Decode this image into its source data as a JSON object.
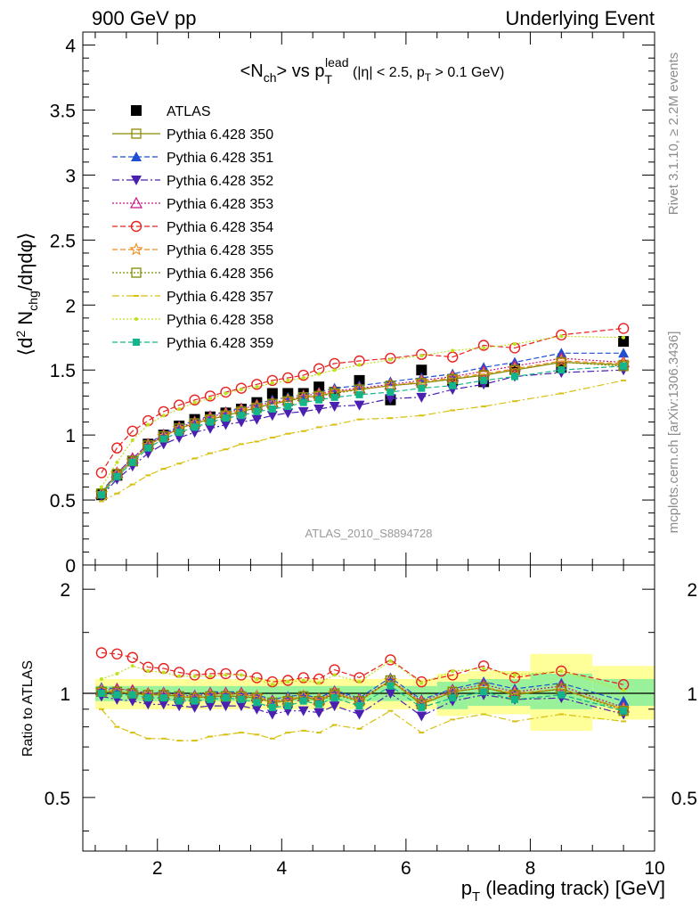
{
  "header": {
    "left": "900 GeV pp",
    "right": "Underlying Event",
    "side_top": "Rivet 3.1.10, ≥ 2.2M events",
    "side_bottom": "mcplots.cern.ch [arXiv:1306.3436]",
    "watermark": "ATLAS_2010_S8894728"
  },
  "chart_data": [
    {
      "type": "scatter",
      "title": "<N_ch> vs p_T^lead (|η| < 2.5, p_T > 0.1 GeV)",
      "xlabel": "p_T (leading track) [GeV]",
      "ylabel": "⟨d² N_chg/dηdφ⟩",
      "xlim": [
        0.8,
        10.0
      ],
      "ylim": [
        0,
        4.1
      ],
      "x_ticks": [
        "2",
        "4",
        "6",
        "8",
        "10"
      ],
      "y_ticks": [
        "0",
        "0.5",
        "1",
        "1.5",
        "2",
        "2.5",
        "3",
        "3.5",
        "4"
      ],
      "legend_position": "top-left",
      "x": [
        1.1,
        1.35,
        1.6,
        1.85,
        2.1,
        2.35,
        2.6,
        2.85,
        3.1,
        3.35,
        3.6,
        3.85,
        4.1,
        4.35,
        4.6,
        4.85,
        5.25,
        5.75,
        6.25,
        6.75,
        7.25,
        7.75,
        8.5,
        9.5
      ],
      "series": [
        {
          "name": "ATLAS",
          "color": "#000000",
          "marker": "filled-square",
          "line": "none",
          "values": [
            0.54,
            0.69,
            0.8,
            0.93,
            1.0,
            1.07,
            1.12,
            1.14,
            1.17,
            1.2,
            1.25,
            1.32,
            1.32,
            1.32,
            1.37,
            1.33,
            1.42,
            1.27,
            1.5,
            1.42,
            1.41,
            1.51,
            1.52,
            1.72
          ]
        },
        {
          "name": "Pythia 6.428 350",
          "color": "#8B8B00",
          "marker": "open-square",
          "line": "solid",
          "values": [
            0.55,
            0.7,
            0.8,
            0.92,
            0.99,
            1.05,
            1.09,
            1.12,
            1.15,
            1.18,
            1.21,
            1.24,
            1.26,
            1.29,
            1.3,
            1.33,
            1.35,
            1.38,
            1.4,
            1.43,
            1.46,
            1.5,
            1.56,
            1.54
          ]
        },
        {
          "name": "Pythia 6.428 351",
          "color": "#1f4fd1",
          "marker": "filled-triangle-up",
          "line": "dashed",
          "values": [
            0.56,
            0.71,
            0.82,
            0.93,
            1.01,
            1.07,
            1.11,
            1.15,
            1.18,
            1.21,
            1.24,
            1.27,
            1.29,
            1.31,
            1.33,
            1.36,
            1.38,
            1.41,
            1.44,
            1.47,
            1.52,
            1.56,
            1.63,
            1.63
          ]
        },
        {
          "name": "Pythia 6.428 352",
          "color": "#4b1fb0",
          "marker": "filled-triangle-down",
          "line": "dashdot",
          "values": [
            0.53,
            0.66,
            0.76,
            0.86,
            0.93,
            0.98,
            1.02,
            1.05,
            1.08,
            1.1,
            1.12,
            1.15,
            1.17,
            1.18,
            1.2,
            1.22,
            1.23,
            1.28,
            1.29,
            1.35,
            1.39,
            1.45,
            1.48,
            1.5
          ]
        },
        {
          "name": "Pythia 6.428 353",
          "color": "#c71585",
          "marker": "open-triangle-up",
          "line": "dotted",
          "values": [
            0.55,
            0.71,
            0.82,
            0.93,
            1.0,
            1.06,
            1.1,
            1.14,
            1.17,
            1.2,
            1.23,
            1.25,
            1.27,
            1.3,
            1.32,
            1.34,
            1.36,
            1.39,
            1.42,
            1.45,
            1.49,
            1.53,
            1.59,
            1.56
          ]
        },
        {
          "name": "Pythia 6.428 354",
          "color": "#e8211f",
          "marker": "open-circle",
          "line": "dashed",
          "values": [
            0.71,
            0.9,
            1.03,
            1.11,
            1.18,
            1.23,
            1.27,
            1.3,
            1.33,
            1.36,
            1.39,
            1.42,
            1.44,
            1.46,
            1.51,
            1.55,
            1.57,
            1.59,
            1.62,
            1.6,
            1.69,
            1.67,
            1.77,
            1.82
          ]
        },
        {
          "name": "Pythia 6.428 355",
          "color": "#f08c1e",
          "marker": "open-star",
          "line": "dashed",
          "values": [
            0.55,
            0.7,
            0.8,
            0.92,
            0.99,
            1.05,
            1.09,
            1.13,
            1.16,
            1.19,
            1.22,
            1.24,
            1.27,
            1.29,
            1.31,
            1.33,
            1.35,
            1.38,
            1.41,
            1.44,
            1.47,
            1.51,
            1.57,
            1.55
          ]
        },
        {
          "name": "Pythia 6.428 356",
          "color": "#7f8b00",
          "marker": "open-square",
          "line": "dotted",
          "values": [
            0.55,
            0.7,
            0.8,
            0.92,
            0.99,
            1.05,
            1.09,
            1.12,
            1.15,
            1.18,
            1.21,
            1.24,
            1.26,
            1.29,
            1.3,
            1.32,
            1.35,
            1.38,
            1.4,
            1.43,
            1.46,
            1.5,
            1.56,
            1.53
          ]
        },
        {
          "name": "Pythia 6.428 357",
          "color": "#d8c010",
          "marker": "dash",
          "line": "dashdot",
          "values": [
            0.49,
            0.55,
            0.62,
            0.69,
            0.74,
            0.78,
            0.82,
            0.86,
            0.89,
            0.93,
            0.95,
            0.98,
            1.01,
            1.03,
            1.06,
            1.08,
            1.12,
            1.13,
            1.15,
            1.19,
            1.22,
            1.26,
            1.32,
            1.42
          ]
        },
        {
          "name": "Pythia 6.428 358",
          "color": "#bde21f",
          "marker": "small-dot",
          "line": "dotted",
          "values": [
            0.6,
            0.79,
            0.96,
            1.08,
            1.15,
            1.2,
            1.25,
            1.28,
            1.32,
            1.35,
            1.37,
            1.4,
            1.42,
            1.44,
            1.47,
            1.5,
            1.54,
            1.58,
            1.61,
            1.65,
            1.67,
            1.7,
            1.76,
            1.75
          ]
        },
        {
          "name": "Pythia 6.428 359",
          "color": "#14b58a",
          "marker": "filled-square-small",
          "line": "dashed",
          "values": [
            0.54,
            0.68,
            0.79,
            0.9,
            0.97,
            1.02,
            1.06,
            1.1,
            1.13,
            1.15,
            1.18,
            1.2,
            1.22,
            1.25,
            1.27,
            1.29,
            1.31,
            1.33,
            1.36,
            1.38,
            1.42,
            1.45,
            1.5,
            1.53
          ]
        }
      ]
    },
    {
      "type": "scatter",
      "title": "",
      "ylabel": "Ratio to ATLAS",
      "xlabel": "p_T (leading track) [GeV]",
      "xlim": [
        0.8,
        10.0
      ],
      "ylim": [
        0.35,
        2.35
      ],
      "y_scale": "log",
      "y_ticks": [
        "0.5",
        "1",
        "2"
      ],
      "reference_line": 1,
      "band_bins": [
        {
          "x0": 1.0,
          "x1": 6.5,
          "green_lo": 0.95,
          "green_hi": 1.05,
          "yellow_lo": 0.9,
          "yellow_hi": 1.1
        },
        {
          "x0": 6.5,
          "x1": 7.0,
          "green_lo": 0.9,
          "green_hi": 1.08,
          "yellow_lo": 0.86,
          "yellow_hi": 1.14
        },
        {
          "x0": 7.0,
          "x1": 8.0,
          "green_lo": 0.92,
          "green_hi": 1.1,
          "yellow_lo": 0.87,
          "yellow_hi": 1.16
        },
        {
          "x0": 8.0,
          "x1": 9.0,
          "green_lo": 0.9,
          "green_hi": 1.14,
          "yellow_lo": 0.78,
          "yellow_hi": 1.3
        },
        {
          "x0": 9.0,
          "x1": 10.0,
          "green_lo": 0.92,
          "green_hi": 1.1,
          "yellow_lo": 0.84,
          "yellow_hi": 1.2
        }
      ],
      "series": [
        {
          "name": "Pythia 6.428 350",
          "values": [
            1.01,
            1.01,
            1.0,
            0.99,
            0.99,
            0.98,
            0.97,
            0.98,
            0.98,
            0.98,
            0.97,
            0.94,
            0.95,
            0.98,
            0.95,
            1.0,
            0.95,
            1.09,
            0.93,
            1.01,
            1.04,
            0.99,
            1.03,
            0.9
          ]
        },
        {
          "name": "Pythia 6.428 351",
          "values": [
            1.04,
            1.03,
            1.02,
            1.0,
            1.01,
            1.0,
            0.99,
            1.01,
            1.01,
            1.01,
            0.99,
            0.96,
            0.98,
            0.99,
            0.97,
            1.02,
            0.97,
            1.11,
            0.96,
            1.03,
            1.08,
            1.03,
            1.07,
            0.95
          ]
        },
        {
          "name": "Pythia 6.428 352",
          "values": [
            0.98,
            0.96,
            0.95,
            0.93,
            0.93,
            0.92,
            0.91,
            0.92,
            0.92,
            0.92,
            0.9,
            0.87,
            0.89,
            0.89,
            0.88,
            0.92,
            0.87,
            1.0,
            0.86,
            0.95,
            0.99,
            0.96,
            0.97,
            0.87
          ]
        },
        {
          "name": "Pythia 6.428 353",
          "values": [
            1.02,
            1.03,
            1.02,
            1.0,
            1.0,
            0.99,
            0.98,
            1.0,
            1.0,
            1.0,
            0.98,
            0.95,
            0.96,
            0.98,
            0.96,
            1.01,
            0.96,
            1.09,
            0.95,
            1.02,
            1.06,
            1.01,
            1.05,
            0.91
          ]
        },
        {
          "name": "Pythia 6.428 354",
          "values": [
            1.31,
            1.3,
            1.27,
            1.19,
            1.18,
            1.15,
            1.13,
            1.14,
            1.14,
            1.13,
            1.11,
            1.08,
            1.09,
            1.11,
            1.1,
            1.17,
            1.11,
            1.25,
            1.08,
            1.13,
            1.2,
            1.11,
            1.16,
            1.06
          ]
        },
        {
          "name": "Pythia 6.428 355",
          "values": [
            1.02,
            1.01,
            1.0,
            0.99,
            0.99,
            0.98,
            0.97,
            0.99,
            0.99,
            0.99,
            0.98,
            0.94,
            0.96,
            0.98,
            0.96,
            1.0,
            0.95,
            1.09,
            0.94,
            1.01,
            1.04,
            1.0,
            1.03,
            0.9
          ]
        },
        {
          "name": "Pythia 6.428 356",
          "values": [
            1.01,
            1.01,
            1.0,
            0.99,
            0.99,
            0.98,
            0.97,
            0.98,
            0.98,
            0.98,
            0.97,
            0.94,
            0.95,
            0.98,
            0.95,
            0.99,
            0.95,
            1.09,
            0.93,
            1.01,
            1.04,
            0.99,
            1.03,
            0.89
          ]
        },
        {
          "name": "Pythia 6.428 357",
          "values": [
            0.9,
            0.8,
            0.77,
            0.74,
            0.74,
            0.73,
            0.73,
            0.75,
            0.76,
            0.77,
            0.76,
            0.74,
            0.77,
            0.78,
            0.77,
            0.81,
            0.79,
            0.89,
            0.77,
            0.84,
            0.87,
            0.83,
            0.87,
            0.83
          ]
        },
        {
          "name": "Pythia 6.428 358",
          "values": [
            1.1,
            1.14,
            1.2,
            1.16,
            1.15,
            1.12,
            1.12,
            1.12,
            1.13,
            1.13,
            1.1,
            1.06,
            1.08,
            1.09,
            1.07,
            1.13,
            1.08,
            1.24,
            1.07,
            1.16,
            1.18,
            1.13,
            1.16,
            1.02
          ]
        },
        {
          "name": "Pythia 6.428 359",
          "values": [
            1.0,
            0.99,
            0.99,
            0.97,
            0.97,
            0.95,
            0.95,
            0.96,
            0.97,
            0.96,
            0.94,
            0.91,
            0.92,
            0.95,
            0.93,
            0.97,
            0.92,
            1.05,
            0.91,
            0.97,
            1.01,
            0.96,
            0.99,
            0.89
          ]
        }
      ]
    }
  ]
}
